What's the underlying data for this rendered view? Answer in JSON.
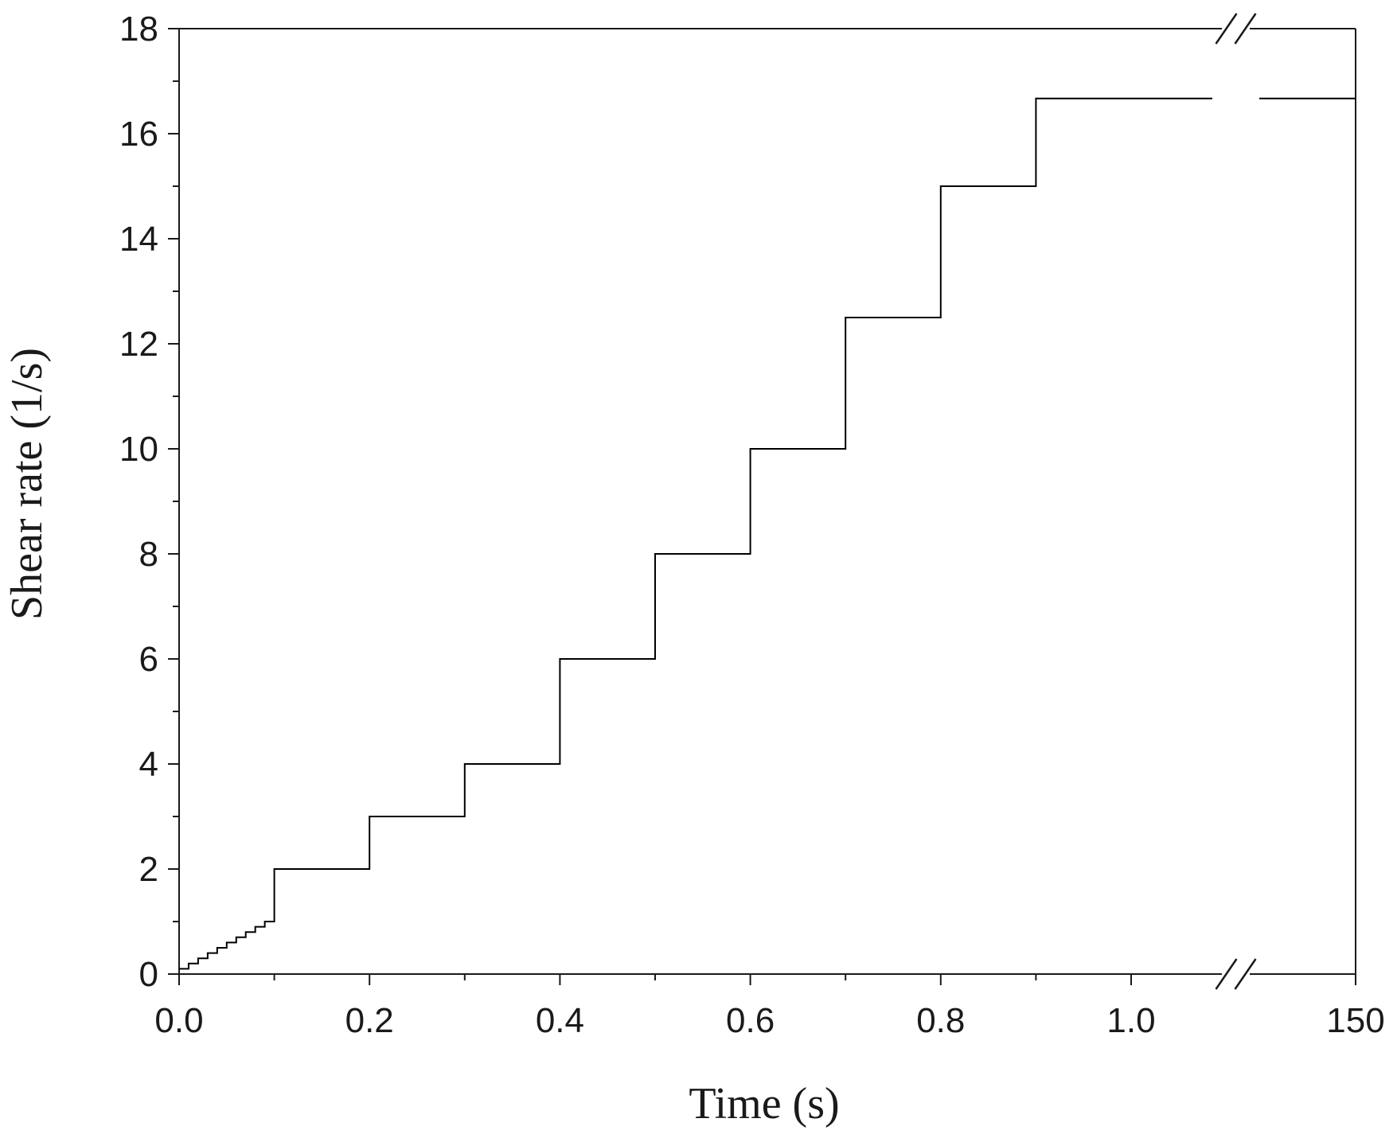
{
  "chart_data": {
    "type": "line",
    "title": "",
    "xlabel": "Time (s)",
    "ylabel": "Shear rate (1/s)",
    "xlim": [
      0,
      1.1
    ],
    "ylim": [
      0,
      18
    ],
    "x_axis_break": {
      "after": 1.0,
      "resumes_at": 150
    },
    "grid": false,
    "legend": "none",
    "line_color": "#000000",
    "x_ticks": [
      {
        "value": 0.0,
        "label": "0.0"
      },
      {
        "value": 0.2,
        "label": "0.2"
      },
      {
        "value": 0.4,
        "label": "0.4"
      },
      {
        "value": 0.6,
        "label": "0.6"
      },
      {
        "value": 0.8,
        "label": "0.8"
      },
      {
        "value": 1.0,
        "label": "1.0"
      },
      {
        "value": 150,
        "label": "150"
      }
    ],
    "y_ticks": [
      {
        "value": 0,
        "label": "0"
      },
      {
        "value": 2,
        "label": "2"
      },
      {
        "value": 4,
        "label": "4"
      },
      {
        "value": 6,
        "label": "6"
      },
      {
        "value": 8,
        "label": "8"
      },
      {
        "value": 10,
        "label": "10"
      },
      {
        "value": 12,
        "label": "12"
      },
      {
        "value": 14,
        "label": "14"
      },
      {
        "value": 16,
        "label": "16"
      },
      {
        "value": 18,
        "label": "18"
      }
    ],
    "series": [
      {
        "step": "post",
        "x": [
          0.0,
          0.01,
          0.02,
          0.03,
          0.04,
          0.05,
          0.06,
          0.07,
          0.08,
          0.09,
          0.1,
          0.2,
          0.3,
          0.4,
          0.5,
          0.6,
          0.7,
          0.8,
          0.9,
          150
        ],
        "y": [
          0.1,
          0.2,
          0.3,
          0.4,
          0.5,
          0.6,
          0.7,
          0.8,
          0.9,
          1.0,
          2.0,
          3.0,
          4.0,
          6.0,
          8.0,
          10.0,
          12.5,
          15.0,
          16.67,
          16.67
        ]
      }
    ]
  }
}
